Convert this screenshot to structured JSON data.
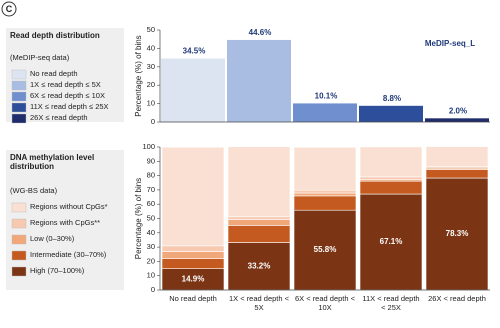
{
  "panel_label": "C",
  "chart_data": [
    {
      "type": "bar",
      "legend_title": "Read depth distribution",
      "legend_subtitle": "(MeDIP-seq data)",
      "y_label": "Percentage (%) of bins",
      "categories": [
        "No read depth",
        "1X ≤ read depth ≤ 5X",
        "6X ≤ read depth ≤ 10X",
        "11X ≤ read depth ≤ 25X",
        "26X ≤ read depth"
      ],
      "colors": [
        "#dce4f2",
        "#a9bde3",
        "#6f8fcf",
        "#2d4e9a",
        "#1f2e6b"
      ],
      "series": [
        {
          "name": "MeDIP-seq_L",
          "values": [
            34.5,
            44.6,
            10.1,
            8.8,
            2.0
          ],
          "value_labels": [
            "34.5%",
            "44.6%",
            "10.1%",
            "8.8%",
            "2.0%"
          ]
        }
      ],
      "ylim": [
        0,
        50
      ],
      "yticks": [
        0,
        10,
        20,
        30,
        40,
        50
      ]
    },
    {
      "type": "stacked_bar",
      "legend_title": "DNA methylation level distribution",
      "legend_subtitle": "(WG-BS data)",
      "y_label": "Percentage (%) of bins",
      "categories": [
        "No read depth",
        "1X < read depth < 5X",
        "6X < read depth < 10X",
        "11X < read depth < 25X",
        "26X < read depth"
      ],
      "series": [
        {
          "name": "High (70–100%)",
          "color": "#7b3514",
          "values": [
            14.9,
            33.2,
            55.8,
            67.1,
            78.3
          ],
          "value_labels": [
            "14.9%",
            "33.2%",
            "55.8%",
            "67.1%",
            "78.3%"
          ]
        },
        {
          "name": "Intermediate (30–70%)",
          "color": "#c45a20",
          "values": [
            7,
            12,
            10,
            9,
            6
          ]
        },
        {
          "name": "Low (0–30%)",
          "color": "#f0a77a",
          "values": [
            5,
            4,
            2,
            1,
            1
          ]
        },
        {
          "name": "Regions with CpGs**",
          "color": "#f6c9b0",
          "values": [
            4,
            2,
            2,
            2,
            1
          ]
        },
        {
          "name": "Regions without CpGs*",
          "color": "#f9e0d3",
          "values": [
            69,
            49,
            30,
            21,
            14
          ]
        }
      ],
      "ylim": [
        0,
        100
      ],
      "yticks": [
        0,
        10,
        20,
        30,
        40,
        50,
        60,
        70,
        80,
        90,
        100
      ]
    }
  ]
}
